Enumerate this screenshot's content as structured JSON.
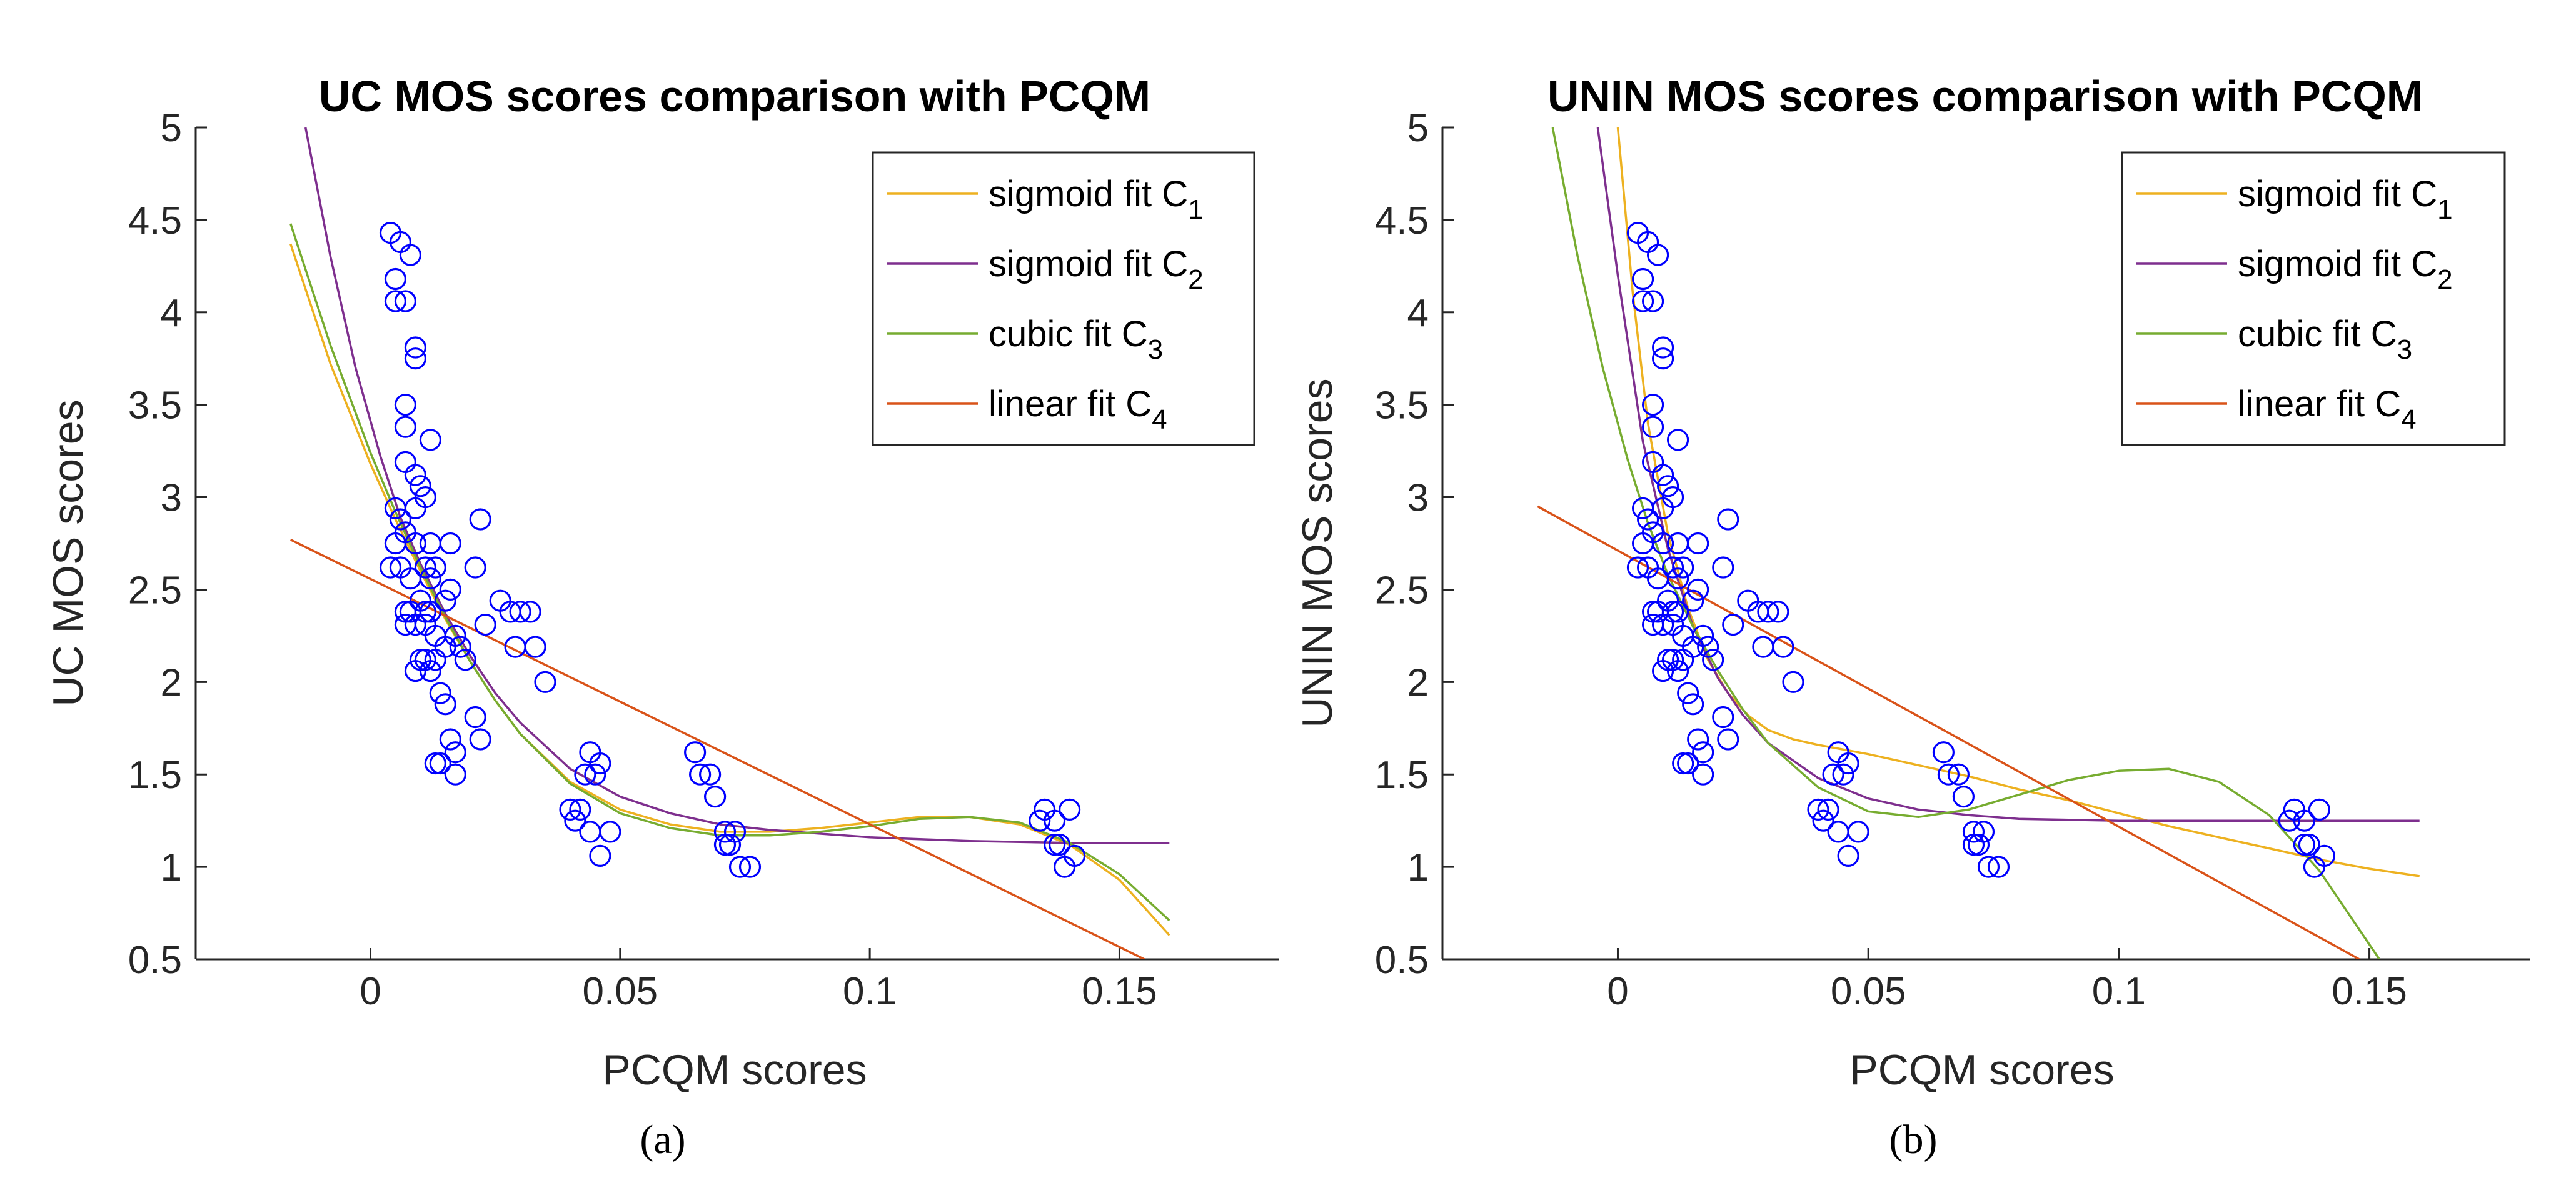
{
  "colors": {
    "sigmoid_c1": "#EDB120",
    "sigmoid_c2": "#7E2F8E",
    "cubic_c3": "#77AC30",
    "linear_c4": "#D95319",
    "markers": "#0000FF",
    "axes": "#262626"
  },
  "chart_data": [
    {
      "type": "scatter",
      "panel_label": "(a)",
      "title": "UC MOS scores comparison with PCQM",
      "xlabel": "PCQM scores",
      "ylabel": "UC MOS scores",
      "xlim": [
        -0.035,
        0.182
      ],
      "ylim": [
        0.5,
        5
      ],
      "xticks": [
        0,
        0.05,
        0.1,
        0.15
      ],
      "xtick_labels": [
        "0",
        "0.05",
        "0.1",
        "0.15"
      ],
      "yticks": [
        0.5,
        1,
        1.5,
        2,
        2.5,
        3,
        3.5,
        4,
        4.5,
        5
      ],
      "ytick_labels": [
        "0.5",
        "1",
        "1.5",
        "2",
        "2.5",
        "3",
        "3.5",
        "4",
        "4.5",
        "5"
      ],
      "legend_position": "top-right",
      "legend": [
        {
          "text": "sigmoid fit C",
          "sub": "1",
          "color_key": "sigmoid_c1"
        },
        {
          "text": "sigmoid fit C",
          "sub": "2",
          "color_key": "sigmoid_c2"
        },
        {
          "text": "cubic fit C",
          "sub": "3",
          "color_key": "cubic_c3"
        },
        {
          "text": "linear fit C",
          "sub": "4",
          "color_key": "linear_c4"
        }
      ],
      "points": [
        [
          0.004,
          4.43
        ],
        [
          0.006,
          4.38
        ],
        [
          0.005,
          4.18
        ],
        [
          0.008,
          4.31
        ],
        [
          0.005,
          4.06
        ],
        [
          0.007,
          4.06
        ],
        [
          0.009,
          3.81
        ],
        [
          0.009,
          3.75
        ],
        [
          0.007,
          3.5
        ],
        [
          0.007,
          3.38
        ],
        [
          0.012,
          3.31
        ],
        [
          0.007,
          3.19
        ],
        [
          0.009,
          3.12
        ],
        [
          0.01,
          3.06
        ],
        [
          0.011,
          3.0
        ],
        [
          0.009,
          2.94
        ],
        [
          0.005,
          2.94
        ],
        [
          0.006,
          2.88
        ],
        [
          0.022,
          2.88
        ],
        [
          0.007,
          2.81
        ],
        [
          0.009,
          2.75
        ],
        [
          0.005,
          2.75
        ],
        [
          0.012,
          2.75
        ],
        [
          0.016,
          2.75
        ],
        [
          0.004,
          2.62
        ],
        [
          0.006,
          2.62
        ],
        [
          0.011,
          2.62
        ],
        [
          0.013,
          2.62
        ],
        [
          0.021,
          2.62
        ],
        [
          0.008,
          2.56
        ],
        [
          0.012,
          2.56
        ],
        [
          0.016,
          2.5
        ],
        [
          0.01,
          2.44
        ],
        [
          0.026,
          2.44
        ],
        [
          0.015,
          2.44
        ],
        [
          0.007,
          2.38
        ],
        [
          0.008,
          2.38
        ],
        [
          0.012,
          2.38
        ],
        [
          0.011,
          2.38
        ],
        [
          0.028,
          2.38
        ],
        [
          0.03,
          2.38
        ],
        [
          0.032,
          2.38
        ],
        [
          0.007,
          2.31
        ],
        [
          0.009,
          2.31
        ],
        [
          0.011,
          2.31
        ],
        [
          0.023,
          2.31
        ],
        [
          0.013,
          2.25
        ],
        [
          0.017,
          2.25
        ],
        [
          0.015,
          2.19
        ],
        [
          0.018,
          2.19
        ],
        [
          0.029,
          2.19
        ],
        [
          0.033,
          2.19
        ],
        [
          0.01,
          2.12
        ],
        [
          0.011,
          2.12
        ],
        [
          0.013,
          2.12
        ],
        [
          0.019,
          2.12
        ],
        [
          0.009,
          2.06
        ],
        [
          0.012,
          2.06
        ],
        [
          0.035,
          2.0
        ],
        [
          0.014,
          1.94
        ],
        [
          0.015,
          1.88
        ],
        [
          0.021,
          1.81
        ],
        [
          0.016,
          1.69
        ],
        [
          0.022,
          1.69
        ],
        [
          0.017,
          1.62
        ],
        [
          0.044,
          1.62
        ],
        [
          0.065,
          1.62
        ],
        [
          0.013,
          1.56
        ],
        [
          0.014,
          1.56
        ],
        [
          0.046,
          1.56
        ],
        [
          0.066,
          1.5
        ],
        [
          0.068,
          1.5
        ],
        [
          0.017,
          1.5
        ],
        [
          0.043,
          1.5
        ],
        [
          0.045,
          1.5
        ],
        [
          0.069,
          1.38
        ],
        [
          0.042,
          1.31
        ],
        [
          0.04,
          1.31
        ],
        [
          0.135,
          1.31
        ],
        [
          0.14,
          1.31
        ],
        [
          0.041,
          1.25
        ],
        [
          0.134,
          1.25
        ],
        [
          0.137,
          1.25
        ],
        [
          0.044,
          1.19
        ],
        [
          0.048,
          1.19
        ],
        [
          0.071,
          1.19
        ],
        [
          0.073,
          1.19
        ],
        [
          0.071,
          1.12
        ],
        [
          0.072,
          1.12
        ],
        [
          0.137,
          1.12
        ],
        [
          0.138,
          1.12
        ],
        [
          0.046,
          1.06
        ],
        [
          0.141,
          1.06
        ],
        [
          0.074,
          1.0
        ],
        [
          0.076,
          1.0
        ],
        [
          0.139,
          1.0
        ]
      ],
      "fits": [
        {
          "key": "sigmoid_c1",
          "x": [
            -0.016,
            -0.008,
            0,
            0.005,
            0.01,
            0.015,
            0.02,
            0.025,
            0.03,
            0.04,
            0.05,
            0.06,
            0.07,
            0.08,
            0.09,
            0.1,
            0.11,
            0.12,
            0.13,
            0.14,
            0.15,
            0.16
          ],
          "y": [
            4.37,
            3.72,
            3.18,
            2.88,
            2.6,
            2.34,
            2.11,
            1.9,
            1.72,
            1.46,
            1.31,
            1.23,
            1.19,
            1.19,
            1.21,
            1.24,
            1.27,
            1.27,
            1.23,
            1.12,
            0.93,
            0.63
          ]
        },
        {
          "key": "sigmoid_c2",
          "x": [
            -0.013,
            -0.008,
            -0.003,
            0.002,
            0.006,
            0.01,
            0.015,
            0.02,
            0.025,
            0.03,
            0.04,
            0.05,
            0.06,
            0.07,
            0.08,
            0.1,
            0.12,
            0.14,
            0.16
          ],
          "y": [
            5.0,
            4.3,
            3.7,
            3.22,
            2.89,
            2.64,
            2.37,
            2.14,
            1.94,
            1.78,
            1.53,
            1.38,
            1.29,
            1.23,
            1.2,
            1.16,
            1.14,
            1.13,
            1.13
          ]
        },
        {
          "key": "cubic_c3",
          "x": [
            -0.016,
            -0.008,
            0,
            0.005,
            0.01,
            0.015,
            0.02,
            0.025,
            0.03,
            0.04,
            0.05,
            0.06,
            0.07,
            0.08,
            0.09,
            0.1,
            0.11,
            0.12,
            0.13,
            0.14,
            0.15,
            0.16
          ],
          "y": [
            4.48,
            3.82,
            3.24,
            2.92,
            2.62,
            2.35,
            2.11,
            1.9,
            1.72,
            1.45,
            1.29,
            1.21,
            1.17,
            1.17,
            1.19,
            1.22,
            1.26,
            1.27,
            1.24,
            1.13,
            0.96,
            0.71
          ]
        },
        {
          "key": "linear_c4",
          "x": [
            -0.016,
            0.155
          ],
          "y": [
            2.77,
            0.5
          ]
        }
      ]
    },
    {
      "type": "scatter",
      "panel_label": "(b)",
      "title": "UNIN MOS scores comparison with PCQM",
      "xlabel": "PCQM scores",
      "ylabel": "UNIN MOS scores",
      "xlim": [
        -0.035,
        0.182
      ],
      "ylim": [
        0.5,
        5
      ],
      "xticks": [
        0,
        0.05,
        0.1,
        0.15
      ],
      "xtick_labels": [
        "0",
        "0.05",
        "0.1",
        "0.15"
      ],
      "yticks": [
        0.5,
        1,
        1.5,
        2,
        2.5,
        3,
        3.5,
        4,
        4.5,
        5
      ],
      "ytick_labels": [
        "0.5",
        "1",
        "1.5",
        "2",
        "2.5",
        "3",
        "3.5",
        "4",
        "4.5",
        "5"
      ],
      "legend_position": "top-right",
      "legend": [
        {
          "text": "sigmoid fit C",
          "sub": "1",
          "color_key": "sigmoid_c1"
        },
        {
          "text": "sigmoid fit C",
          "sub": "2",
          "color_key": "sigmoid_c2"
        },
        {
          "text": "cubic fit C",
          "sub": "3",
          "color_key": "cubic_c3"
        },
        {
          "text": "linear fit C",
          "sub": "4",
          "color_key": "linear_c4"
        }
      ],
      "points": [
        [
          0.004,
          4.43
        ],
        [
          0.006,
          4.38
        ],
        [
          0.005,
          4.18
        ],
        [
          0.008,
          4.31
        ],
        [
          0.005,
          4.06
        ],
        [
          0.007,
          4.06
        ],
        [
          0.009,
          3.81
        ],
        [
          0.009,
          3.75
        ],
        [
          0.007,
          3.5
        ],
        [
          0.007,
          3.38
        ],
        [
          0.012,
          3.31
        ],
        [
          0.007,
          3.19
        ],
        [
          0.009,
          3.12
        ],
        [
          0.01,
          3.06
        ],
        [
          0.011,
          3.0
        ],
        [
          0.009,
          2.94
        ],
        [
          0.005,
          2.94
        ],
        [
          0.006,
          2.88
        ],
        [
          0.022,
          2.88
        ],
        [
          0.007,
          2.81
        ],
        [
          0.009,
          2.75
        ],
        [
          0.005,
          2.75
        ],
        [
          0.012,
          2.75
        ],
        [
          0.016,
          2.75
        ],
        [
          0.004,
          2.62
        ],
        [
          0.006,
          2.62
        ],
        [
          0.011,
          2.62
        ],
        [
          0.013,
          2.62
        ],
        [
          0.021,
          2.62
        ],
        [
          0.008,
          2.56
        ],
        [
          0.012,
          2.56
        ],
        [
          0.016,
          2.5
        ],
        [
          0.01,
          2.44
        ],
        [
          0.026,
          2.44
        ],
        [
          0.015,
          2.44
        ],
        [
          0.007,
          2.38
        ],
        [
          0.008,
          2.38
        ],
        [
          0.012,
          2.38
        ],
        [
          0.011,
          2.38
        ],
        [
          0.028,
          2.38
        ],
        [
          0.03,
          2.38
        ],
        [
          0.032,
          2.38
        ],
        [
          0.007,
          2.31
        ],
        [
          0.009,
          2.31
        ],
        [
          0.011,
          2.31
        ],
        [
          0.023,
          2.31
        ],
        [
          0.013,
          2.25
        ],
        [
          0.017,
          2.25
        ],
        [
          0.015,
          2.19
        ],
        [
          0.018,
          2.19
        ],
        [
          0.029,
          2.19
        ],
        [
          0.033,
          2.19
        ],
        [
          0.01,
          2.12
        ],
        [
          0.011,
          2.12
        ],
        [
          0.013,
          2.12
        ],
        [
          0.019,
          2.12
        ],
        [
          0.009,
          2.06
        ],
        [
          0.012,
          2.06
        ],
        [
          0.035,
          2.0
        ],
        [
          0.014,
          1.94
        ],
        [
          0.015,
          1.88
        ],
        [
          0.021,
          1.81
        ],
        [
          0.016,
          1.69
        ],
        [
          0.022,
          1.69
        ],
        [
          0.017,
          1.62
        ],
        [
          0.044,
          1.62
        ],
        [
          0.065,
          1.62
        ],
        [
          0.013,
          1.56
        ],
        [
          0.014,
          1.56
        ],
        [
          0.046,
          1.56
        ],
        [
          0.066,
          1.5
        ],
        [
          0.068,
          1.5
        ],
        [
          0.017,
          1.5
        ],
        [
          0.043,
          1.5
        ],
        [
          0.045,
          1.5
        ],
        [
          0.069,
          1.38
        ],
        [
          0.042,
          1.31
        ],
        [
          0.04,
          1.31
        ],
        [
          0.135,
          1.31
        ],
        [
          0.14,
          1.31
        ],
        [
          0.041,
          1.25
        ],
        [
          0.134,
          1.25
        ],
        [
          0.137,
          1.25
        ],
        [
          0.044,
          1.19
        ],
        [
          0.048,
          1.19
        ],
        [
          0.071,
          1.19
        ],
        [
          0.073,
          1.19
        ],
        [
          0.071,
          1.12
        ],
        [
          0.072,
          1.12
        ],
        [
          0.137,
          1.12
        ],
        [
          0.138,
          1.12
        ],
        [
          0.046,
          1.06
        ],
        [
          0.141,
          1.06
        ],
        [
          0.074,
          1.0
        ],
        [
          0.076,
          1.0
        ],
        [
          0.139,
          1.0
        ]
      ],
      "fits": [
        {
          "key": "sigmoid_c1",
          "x": [
            0,
            0.003,
            0.006,
            0.01,
            0.014,
            0.018,
            0.022,
            0.026,
            0.03,
            0.035,
            0.04,
            0.05,
            0.06,
            0.07,
            0.08,
            0.09,
            0.1,
            0.11,
            0.12,
            0.13,
            0.14,
            0.15,
            0.16
          ],
          "y": [
            5.0,
            4.1,
            3.4,
            2.8,
            2.4,
            2.12,
            1.94,
            1.82,
            1.74,
            1.69,
            1.66,
            1.61,
            1.55,
            1.49,
            1.42,
            1.36,
            1.29,
            1.22,
            1.16,
            1.1,
            1.04,
            0.99,
            0.95
          ]
        },
        {
          "key": "sigmoid_c2",
          "x": [
            -0.004,
            0,
            0.005,
            0.01,
            0.015,
            0.02,
            0.025,
            0.03,
            0.04,
            0.05,
            0.06,
            0.07,
            0.08,
            0.1,
            0.12,
            0.14,
            0.16
          ],
          "y": [
            5.0,
            4.2,
            3.3,
            2.72,
            2.3,
            2.02,
            1.82,
            1.67,
            1.48,
            1.37,
            1.31,
            1.28,
            1.26,
            1.25,
            1.25,
            1.25,
            1.25
          ]
        },
        {
          "key": "cubic_c3",
          "x": [
            -0.013,
            -0.008,
            -0.003,
            0.002,
            0.006,
            0.01,
            0.015,
            0.02,
            0.025,
            0.03,
            0.04,
            0.05,
            0.06,
            0.07,
            0.08,
            0.09,
            0.1,
            0.11,
            0.12,
            0.13,
            0.14,
            0.145,
            0.152
          ],
          "y": [
            5.0,
            4.3,
            3.7,
            3.2,
            2.86,
            2.58,
            2.3,
            2.06,
            1.85,
            1.67,
            1.43,
            1.3,
            1.27,
            1.31,
            1.39,
            1.47,
            1.52,
            1.53,
            1.46,
            1.28,
            0.98,
            0.78,
            0.5
          ]
        },
        {
          "key": "linear_c4",
          "x": [
            -0.016,
            0.148
          ],
          "y": [
            2.95,
            0.5
          ]
        }
      ]
    }
  ]
}
